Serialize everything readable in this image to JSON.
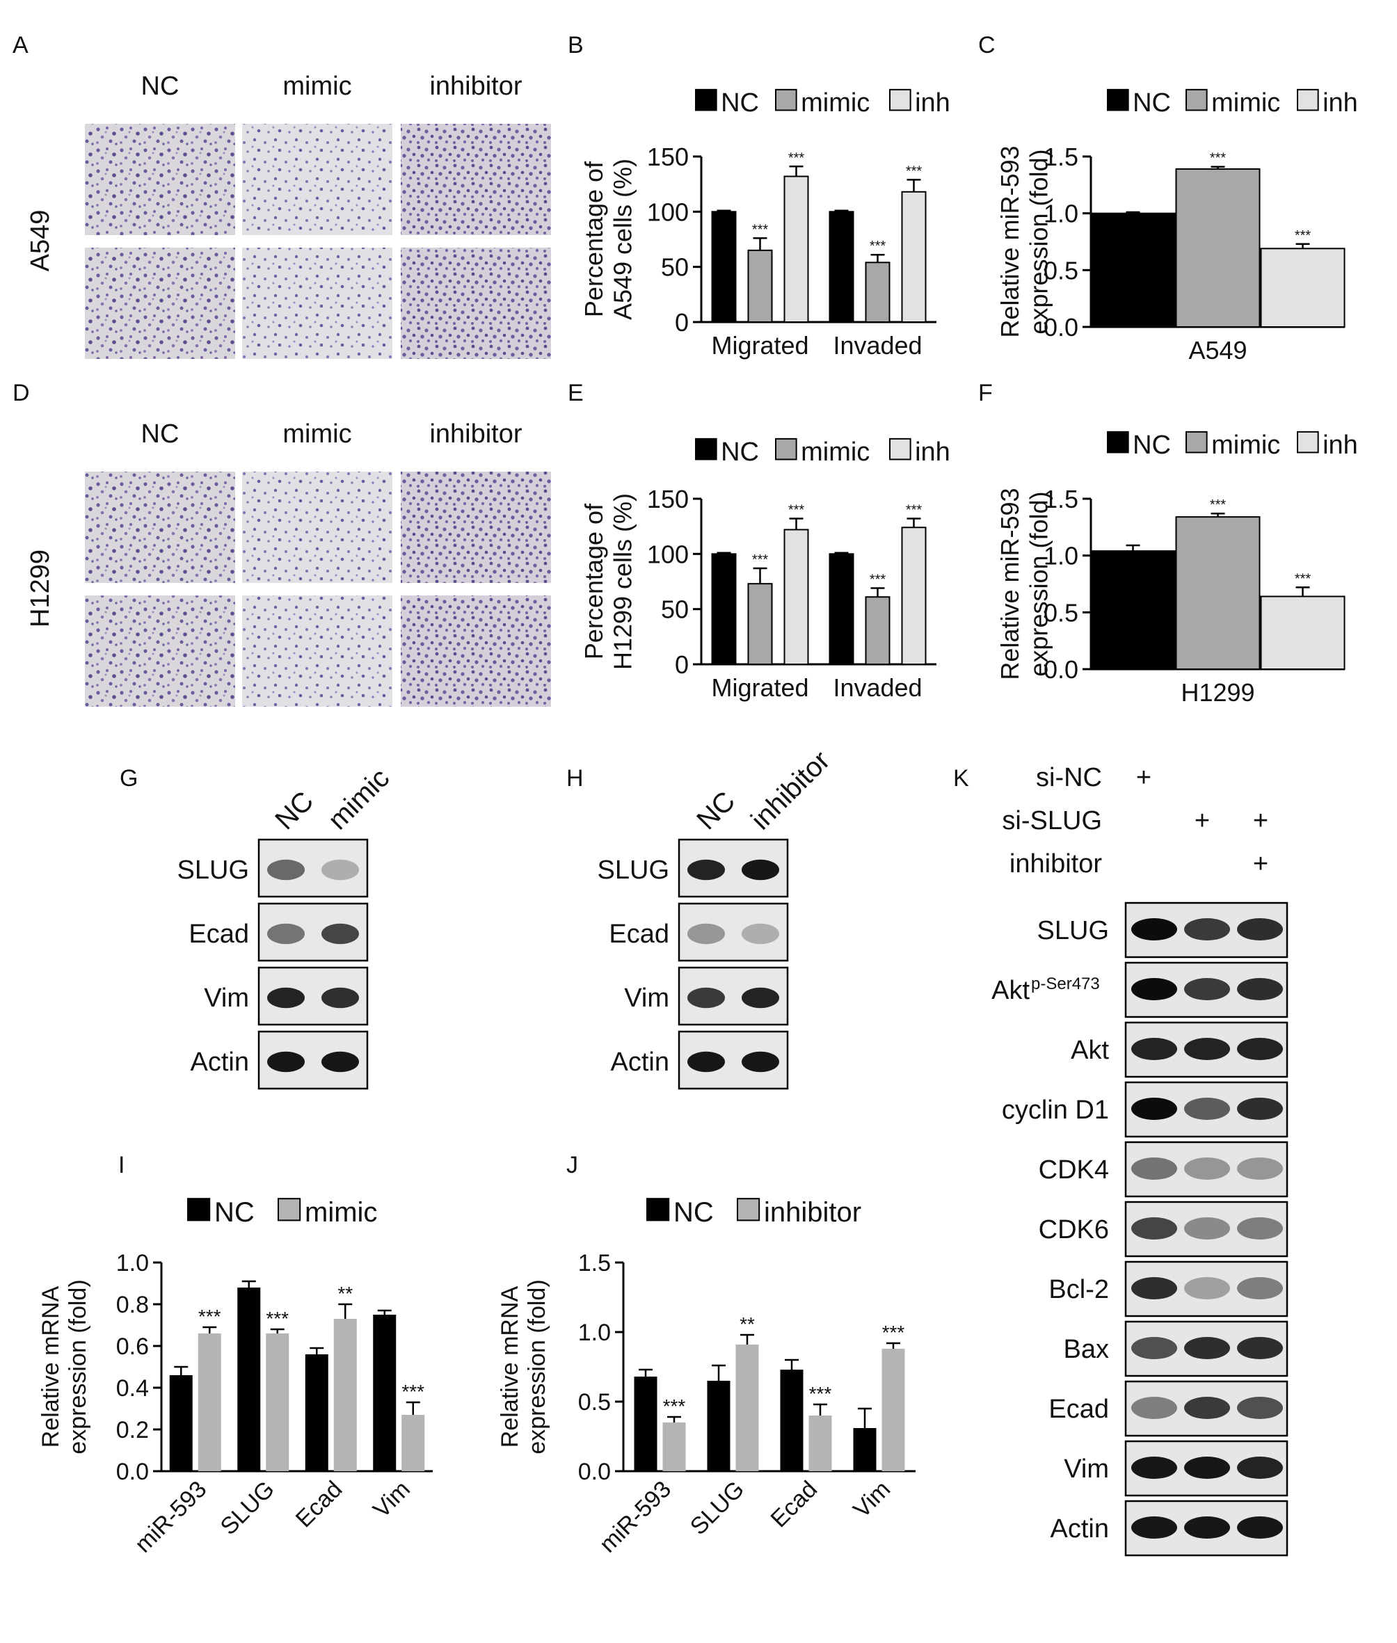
{
  "figure": {
    "panels": {
      "A": {
        "letter": "A",
        "cell_line": "A549",
        "columns": [
          "NC",
          "mimic",
          "inhibitor"
        ]
      },
      "D": {
        "letter": "D",
        "cell_line": "H1299",
        "columns": [
          "NC",
          "mimic",
          "inhibitor"
        ]
      },
      "G": {
        "letter": "G",
        "lanes": [
          "NC",
          "mimic"
        ],
        "rows": [
          "SLUG",
          "Ecad",
          "Vim",
          "Actin"
        ]
      },
      "H": {
        "letter": "H",
        "lanes": [
          "NC",
          "inhibitor"
        ],
        "rows": [
          "SLUG",
          "Ecad",
          "Vim",
          "Actin"
        ]
      },
      "K": {
        "letter": "K",
        "conditions": [
          {
            "label": "si-NC",
            "marks": [
              "+",
              "",
              ""
            ]
          },
          {
            "label": "si-SLUG",
            "marks": [
              "",
              "+",
              "+"
            ]
          },
          {
            "label": "inhibitor",
            "marks": [
              "",
              "",
              "+"
            ]
          }
        ],
        "rows": [
          "SLUG",
          "Akt",
          "Akt",
          "cyclin D1",
          "CDK4",
          "CDK6",
          "Bcl-2",
          "Bax",
          "Ecad",
          "Vim",
          "Actin"
        ],
        "akt_phospho_superscript": "p-Ser473"
      }
    }
  },
  "colors": {
    "nc": "#000000",
    "mimic": "#a8a8a8",
    "inhibitor": "#e2e2e2",
    "gray_series": "#b4b4b4"
  },
  "chart_data": [
    {
      "panel": "B",
      "type": "bar",
      "categories": [
        "Migrated",
        "Invaded"
      ],
      "series": [
        {
          "name": "NC",
          "values": [
            100,
            100
          ],
          "errors": [
            1,
            1
          ],
          "sig": [
            "",
            ""
          ]
        },
        {
          "name": "mimic",
          "values": [
            65,
            54
          ],
          "errors": [
            11,
            7
          ],
          "sig": [
            "***",
            "***"
          ]
        },
        {
          "name": "inh",
          "values": [
            132,
            118
          ],
          "errors": [
            9,
            11
          ],
          "sig": [
            "***",
            "***"
          ]
        }
      ],
      "ylabel": [
        "Percentage of",
        "A549 cells (%)"
      ],
      "ylim": [
        0,
        150
      ],
      "yticks": [
        "0",
        "50",
        "100",
        "150"
      ],
      "legend": "top"
    },
    {
      "panel": "C",
      "type": "bar",
      "categories": [
        "A549"
      ],
      "series": [
        {
          "name": "NC",
          "values": [
            1.0
          ],
          "errors": [
            0.01
          ],
          "sig": [
            ""
          ]
        },
        {
          "name": "mimic",
          "values": [
            1.39
          ],
          "errors": [
            0.02
          ],
          "sig": [
            "***"
          ]
        },
        {
          "name": "inh",
          "values": [
            0.69
          ],
          "errors": [
            0.04
          ],
          "sig": [
            "***"
          ]
        }
      ],
      "ylabel": [
        "Relative miR-593",
        "expression (fold)"
      ],
      "ylim": [
        0,
        1.5
      ],
      "yticks": [
        "0.0",
        "0.5",
        "1.0",
        "1.5"
      ],
      "legend": "top"
    },
    {
      "panel": "E",
      "type": "bar",
      "categories": [
        "Migrated",
        "Invaded"
      ],
      "series": [
        {
          "name": "NC",
          "values": [
            100,
            100
          ],
          "errors": [
            1,
            1
          ],
          "sig": [
            "",
            ""
          ]
        },
        {
          "name": "mimic",
          "values": [
            73,
            61
          ],
          "errors": [
            14,
            8
          ],
          "sig": [
            "***",
            "***"
          ]
        },
        {
          "name": "inh",
          "values": [
            122,
            124
          ],
          "errors": [
            10,
            8
          ],
          "sig": [
            "***",
            "***"
          ]
        }
      ],
      "ylabel": [
        "Percentage of",
        "H1299 cells (%)"
      ],
      "ylim": [
        0,
        150
      ],
      "yticks": [
        "0",
        "50",
        "100",
        "150"
      ],
      "legend": "top"
    },
    {
      "panel": "F",
      "type": "bar",
      "categories": [
        "H1299"
      ],
      "series": [
        {
          "name": "NC",
          "values": [
            1.04
          ],
          "errors": [
            0.05
          ],
          "sig": [
            ""
          ]
        },
        {
          "name": "mimic",
          "values": [
            1.34
          ],
          "errors": [
            0.03
          ],
          "sig": [
            "***"
          ]
        },
        {
          "name": "inh",
          "values": [
            0.64
          ],
          "errors": [
            0.08
          ],
          "sig": [
            "***"
          ]
        }
      ],
      "ylabel": [
        "Relative miR-593",
        "expression (fold)"
      ],
      "ylim": [
        0,
        1.5
      ],
      "yticks": [
        "0.0",
        "0.5",
        "1.0",
        "1.5"
      ],
      "legend": "top"
    },
    {
      "panel": "I",
      "type": "bar",
      "categories": [
        "miR-593",
        "SLUG",
        "Ecad",
        "Vim"
      ],
      "series": [
        {
          "name": "NC",
          "values": [
            0.46,
            0.88,
            0.56,
            0.75
          ],
          "errors": [
            0.04,
            0.03,
            0.03,
            0.02
          ],
          "sig": [
            "",
            "",
            "",
            ""
          ]
        },
        {
          "name": "mimic",
          "values": [
            0.66,
            0.66,
            0.73,
            0.27
          ],
          "errors": [
            0.03,
            0.02,
            0.07,
            0.06
          ],
          "sig": [
            "***",
            "***",
            "**",
            "***"
          ]
        }
      ],
      "ylabel": [
        "Relative mRNA",
        "expression (fold)"
      ],
      "ylim": [
        0,
        1.0
      ],
      "yticks": [
        "0.0",
        "0.2",
        "0.4",
        "0.6",
        "0.8",
        "1.0"
      ],
      "legend": "top"
    },
    {
      "panel": "J",
      "type": "bar",
      "categories": [
        "miR-593",
        "SLUG",
        "Ecad",
        "Vim"
      ],
      "series": [
        {
          "name": "NC",
          "values": [
            0.68,
            0.65,
            0.73,
            0.31
          ],
          "errors": [
            0.05,
            0.11,
            0.07,
            0.14
          ],
          "sig": [
            "",
            "",
            "",
            ""
          ]
        },
        {
          "name": "inhibitor",
          "values": [
            0.35,
            0.91,
            0.4,
            0.88
          ],
          "errors": [
            0.04,
            0.07,
            0.08,
            0.04
          ],
          "sig": [
            "***",
            "**",
            "***",
            "***"
          ]
        }
      ],
      "ylabel": [
        "Relative mRNA",
        "expression (fold)"
      ],
      "ylim": [
        0,
        1.5
      ],
      "yticks": [
        "0.0",
        "0.5",
        "1.0",
        "1.5"
      ],
      "legend": "top"
    }
  ]
}
